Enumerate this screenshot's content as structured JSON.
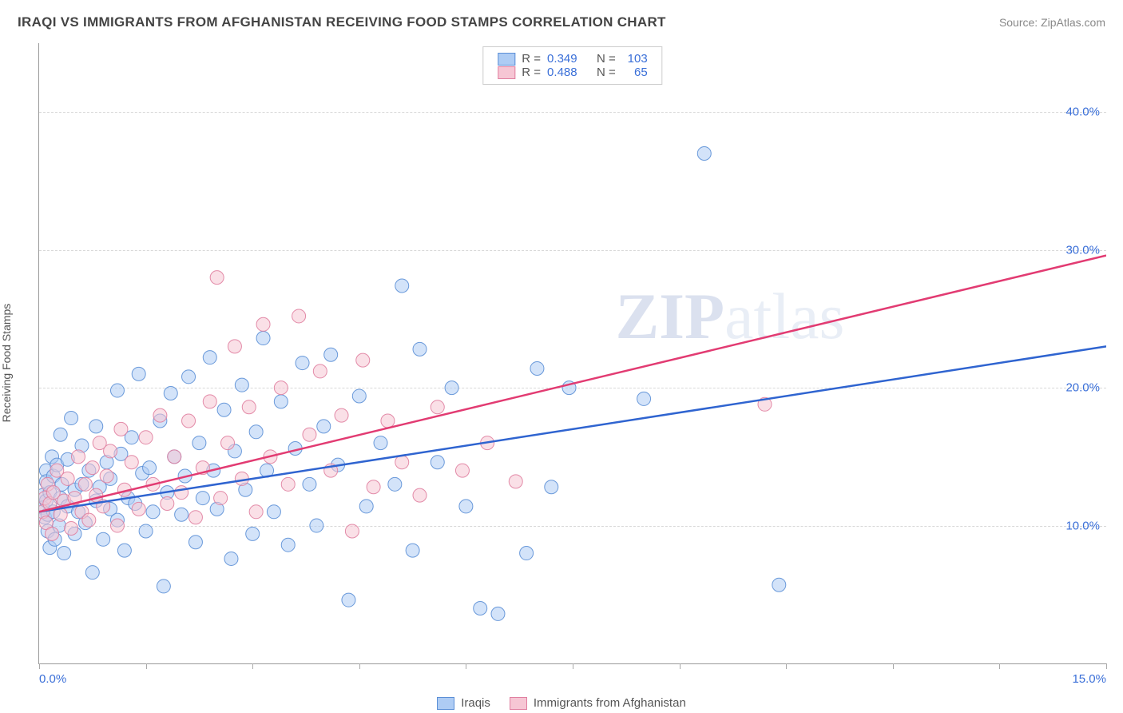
{
  "header": {
    "title": "IRAQI VS IMMIGRANTS FROM AFGHANISTAN RECEIVING FOOD STAMPS CORRELATION CHART",
    "source_prefix": "Source: ",
    "source_name": "ZipAtlas.com"
  },
  "ylabel": "Receiving Food Stamps",
  "watermark": {
    "bold": "ZIP",
    "rest": "atlas"
  },
  "chart": {
    "type": "scatter-with-trendlines",
    "background_color": "#ffffff",
    "grid_color": "#d8d8d8",
    "axis_color": "#999999",
    "xlim": [
      0,
      15
    ],
    "ylim": [
      0,
      45
    ],
    "x_ticks": [
      0,
      1.5,
      3.0,
      4.5,
      6.0,
      7.5,
      9.0,
      10.5,
      12.0,
      13.5,
      15.0
    ],
    "x_labels_shown": {
      "0": "0.0%",
      "15": "15.0%"
    },
    "y_gridlines": [
      10,
      20,
      30,
      40
    ],
    "y_labels": {
      "10": "10.0%",
      "20": "20.0%",
      "30": "30.0%",
      "40": "40.0%"
    },
    "label_color": "#3a6fd8",
    "label_fontsize": 15,
    "point_radius": 8.5,
    "point_opacity": 0.55,
    "point_stroke_opacity": 0.9,
    "trend_line_width": 2.5,
    "series": [
      {
        "id": "iraqis",
        "label": "Iraqis",
        "R": 0.349,
        "N": 103,
        "fill": "#aeccf4",
        "stroke": "#5b8fd6",
        "line_color": "#2f64d0",
        "trend": {
          "x1": 0,
          "y1": 11.0,
          "x2": 15,
          "y2": 23.0
        },
        "points": [
          [
            0.05,
            12.2
          ],
          [
            0.05,
            11.3
          ],
          [
            0.08,
            10.6
          ],
          [
            0.1,
            14.0
          ],
          [
            0.1,
            13.2
          ],
          [
            0.1,
            11.8
          ],
          [
            0.12,
            9.6
          ],
          [
            0.12,
            10.8
          ],
          [
            0.15,
            8.4
          ],
          [
            0.15,
            12.4
          ],
          [
            0.18,
            15.0
          ],
          [
            0.2,
            11.0
          ],
          [
            0.2,
            13.6
          ],
          [
            0.22,
            9.0
          ],
          [
            0.25,
            14.4
          ],
          [
            0.28,
            10.0
          ],
          [
            0.3,
            12.0
          ],
          [
            0.3,
            16.6
          ],
          [
            0.32,
            13.0
          ],
          [
            0.35,
            8.0
          ],
          [
            0.4,
            14.8
          ],
          [
            0.4,
            11.4
          ],
          [
            0.45,
            17.8
          ],
          [
            0.5,
            9.4
          ],
          [
            0.5,
            12.6
          ],
          [
            0.55,
            11.0
          ],
          [
            0.6,
            15.8
          ],
          [
            0.6,
            13.0
          ],
          [
            0.65,
            10.2
          ],
          [
            0.7,
            14.0
          ],
          [
            0.75,
            6.6
          ],
          [
            0.8,
            11.8
          ],
          [
            0.8,
            17.2
          ],
          [
            0.85,
            12.8
          ],
          [
            0.9,
            9.0
          ],
          [
            0.95,
            14.6
          ],
          [
            1.0,
            11.2
          ],
          [
            1.0,
            13.4
          ],
          [
            1.1,
            19.8
          ],
          [
            1.1,
            10.4
          ],
          [
            1.15,
            15.2
          ],
          [
            1.2,
            8.2
          ],
          [
            1.25,
            12.0
          ],
          [
            1.3,
            16.4
          ],
          [
            1.35,
            11.6
          ],
          [
            1.4,
            21.0
          ],
          [
            1.45,
            13.8
          ],
          [
            1.5,
            9.6
          ],
          [
            1.55,
            14.2
          ],
          [
            1.6,
            11.0
          ],
          [
            1.7,
            17.6
          ],
          [
            1.75,
            5.6
          ],
          [
            1.8,
            12.4
          ],
          [
            1.85,
            19.6
          ],
          [
            1.9,
            15.0
          ],
          [
            2.0,
            10.8
          ],
          [
            2.05,
            13.6
          ],
          [
            2.1,
            20.8
          ],
          [
            2.2,
            8.8
          ],
          [
            2.25,
            16.0
          ],
          [
            2.3,
            12.0
          ],
          [
            2.4,
            22.2
          ],
          [
            2.45,
            14.0
          ],
          [
            2.5,
            11.2
          ],
          [
            2.6,
            18.4
          ],
          [
            2.7,
            7.6
          ],
          [
            2.75,
            15.4
          ],
          [
            2.85,
            20.2
          ],
          [
            2.9,
            12.6
          ],
          [
            3.0,
            9.4
          ],
          [
            3.05,
            16.8
          ],
          [
            3.15,
            23.6
          ],
          [
            3.2,
            14.0
          ],
          [
            3.3,
            11.0
          ],
          [
            3.4,
            19.0
          ],
          [
            3.5,
            8.6
          ],
          [
            3.6,
            15.6
          ],
          [
            3.7,
            21.8
          ],
          [
            3.8,
            13.0
          ],
          [
            3.9,
            10.0
          ],
          [
            4.0,
            17.2
          ],
          [
            4.1,
            22.4
          ],
          [
            4.2,
            14.4
          ],
          [
            4.35,
            4.6
          ],
          [
            4.5,
            19.4
          ],
          [
            4.6,
            11.4
          ],
          [
            4.8,
            16.0
          ],
          [
            5.0,
            13.0
          ],
          [
            5.1,
            27.4
          ],
          [
            5.25,
            8.2
          ],
          [
            5.35,
            22.8
          ],
          [
            5.6,
            14.6
          ],
          [
            5.8,
            20.0
          ],
          [
            6.0,
            11.4
          ],
          [
            6.2,
            4.0
          ],
          [
            6.45,
            3.6
          ],
          [
            6.85,
            8.0
          ],
          [
            7.0,
            21.4
          ],
          [
            7.2,
            12.8
          ],
          [
            7.45,
            20.0
          ],
          [
            8.5,
            19.2
          ],
          [
            9.35,
            37.0
          ],
          [
            10.4,
            5.7
          ]
        ]
      },
      {
        "id": "afghan",
        "label": "Immigrants from Afghanistan",
        "R": 0.488,
        "N": 65,
        "fill": "#f6c6d4",
        "stroke": "#e07fa0",
        "line_color": "#e23b72",
        "trend": {
          "x1": 0,
          "y1": 11.0,
          "x2": 15,
          "y2": 29.6
        },
        "points": [
          [
            0.05,
            11.0
          ],
          [
            0.08,
            12.0
          ],
          [
            0.1,
            10.2
          ],
          [
            0.12,
            13.0
          ],
          [
            0.15,
            11.6
          ],
          [
            0.18,
            9.4
          ],
          [
            0.2,
            12.4
          ],
          [
            0.25,
            14.0
          ],
          [
            0.3,
            10.8
          ],
          [
            0.35,
            11.8
          ],
          [
            0.4,
            13.4
          ],
          [
            0.45,
            9.8
          ],
          [
            0.5,
            12.0
          ],
          [
            0.55,
            15.0
          ],
          [
            0.6,
            11.0
          ],
          [
            0.65,
            13.0
          ],
          [
            0.7,
            10.4
          ],
          [
            0.75,
            14.2
          ],
          [
            0.8,
            12.2
          ],
          [
            0.85,
            16.0
          ],
          [
            0.9,
            11.4
          ],
          [
            0.95,
            13.6
          ],
          [
            1.0,
            15.4
          ],
          [
            1.1,
            10.0
          ],
          [
            1.15,
            17.0
          ],
          [
            1.2,
            12.6
          ],
          [
            1.3,
            14.6
          ],
          [
            1.4,
            11.2
          ],
          [
            1.5,
            16.4
          ],
          [
            1.6,
            13.0
          ],
          [
            1.7,
            18.0
          ],
          [
            1.8,
            11.6
          ],
          [
            1.9,
            15.0
          ],
          [
            2.0,
            12.4
          ],
          [
            2.1,
            17.6
          ],
          [
            2.2,
            10.6
          ],
          [
            2.3,
            14.2
          ],
          [
            2.4,
            19.0
          ],
          [
            2.5,
            28.0
          ],
          [
            2.55,
            12.0
          ],
          [
            2.65,
            16.0
          ],
          [
            2.75,
            23.0
          ],
          [
            2.85,
            13.4
          ],
          [
            2.95,
            18.6
          ],
          [
            3.05,
            11.0
          ],
          [
            3.15,
            24.6
          ],
          [
            3.25,
            15.0
          ],
          [
            3.4,
            20.0
          ],
          [
            3.5,
            13.0
          ],
          [
            3.65,
            25.2
          ],
          [
            3.8,
            16.6
          ],
          [
            3.95,
            21.2
          ],
          [
            4.1,
            14.0
          ],
          [
            4.25,
            18.0
          ],
          [
            4.4,
            9.6
          ],
          [
            4.55,
            22.0
          ],
          [
            4.7,
            12.8
          ],
          [
            4.9,
            17.6
          ],
          [
            5.1,
            14.6
          ],
          [
            5.35,
            12.2
          ],
          [
            5.6,
            18.6
          ],
          [
            5.95,
            14.0
          ],
          [
            6.3,
            16.0
          ],
          [
            6.7,
            13.2
          ],
          [
            10.2,
            18.8
          ]
        ]
      }
    ]
  },
  "legend_top": {
    "r_prefix": "R =",
    "n_prefix": "N ="
  }
}
